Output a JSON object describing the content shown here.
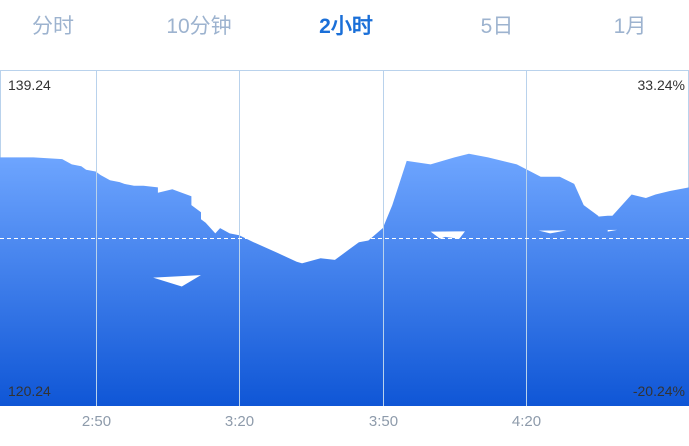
{
  "tabs": [
    {
      "label": "分时",
      "active": false
    },
    {
      "label": "10分钟",
      "active": false
    },
    {
      "label": "2小时",
      "active": true
    },
    {
      "label": "5日",
      "active": false
    },
    {
      "label": "1月",
      "active": false
    }
  ],
  "colors": {
    "active_tab": "#1a6fd8",
    "inactive_tab": "#9db3cf",
    "area_top": "#6fa6ff",
    "area_bottom": "#0f56d6",
    "grid": "#b9d2ec",
    "baseline": "#ffffff"
  },
  "chart_data": {
    "type": "area",
    "y_left_labels": {
      "max": "139.24",
      "min": "120.24"
    },
    "y_right_labels": {
      "max": "33.24%",
      "min": "-20.24%"
    },
    "ylim": [
      120.24,
      139.24
    ],
    "baseline": 129.74,
    "x_ticks": [
      "2:50",
      "3:20",
      "3:50",
      "4:20"
    ],
    "xlim": [
      2.3,
      4.54
    ],
    "series": [
      {
        "x": [
          2.3,
          2.37,
          2.43,
          2.45,
          2.47,
          2.48,
          2.5,
          2.51,
          2.53,
          2.55,
          2.56,
          2.58,
          2.6,
          2.63,
          2.63,
          2.66,
          2.68,
          2.7,
          2.7,
          2.72,
          2.72,
          2.73,
          2.75,
          2.76,
          2.78,
          2.8,
          2.83,
          2.88,
          2.92,
          2.97,
          3.02,
          3.08,
          3.13,
          3.18,
          3.22,
          3.25,
          3.27,
          3.3,
          3.33,
          3.37,
          3.4,
          3.43,
          3.45,
          3.47,
          3.5,
          3.52,
          3.55,
          3.6,
          3.65,
          3.68,
          3.72,
          3.78,
          3.83,
          3.87,
          3.9,
          3.92,
          3.95,
          3.97,
          3.97,
          3.99,
          4.0,
          4.02,
          4.03,
          4.06,
          4.08,
          4.1,
          4.12,
          4.13,
          4.15,
          4.17,
          4.18,
          4.2,
          4.22,
          4.25,
          4.27,
          4.29,
          4.3,
          4.32,
          4.33,
          4.37,
          4.38,
          4.42,
          4.45,
          4.47,
          4.5,
          4.54
        ],
        "values": [
          134.3,
          134.3,
          134.2,
          133.9,
          133.8,
          133.6,
          133.5,
          133.3,
          133.0,
          132.9,
          132.8,
          132.7,
          132.7,
          132.6,
          132.3,
          132.5,
          132.3,
          132.1,
          131.6,
          131.2,
          130.8,
          130.6,
          130.0,
          130.3,
          130.0,
          129.9,
          129.5,
          128.9,
          128.4,
          128.0,
          127.5,
          127.0,
          127.8,
          128.3,
          128.6,
          128.6,
          128.7,
          128.6,
          128.3,
          128.6,
          128.5,
          129.1,
          129.5,
          129.6,
          130.3,
          131.6,
          134.1,
          133.9,
          134.3,
          134.5,
          134.3,
          133.9,
          133.2,
          133.2,
          132.8,
          131.6,
          131.0,
          130.2,
          130.1,
          130.2,
          130.1,
          129.7,
          129.8,
          129.7,
          130.4,
          130.3,
          130.6,
          130.6,
          130.5,
          130.8,
          130.8,
          130.4,
          130.2,
          130.0,
          130.1,
          130.2,
          130.5,
          130.7,
          130.9,
          131.0,
          131.0,
          132.2,
          132.0,
          132.2,
          132.4,
          132.6
        ]
      }
    ],
    "grid": true,
    "legend": "none"
  }
}
